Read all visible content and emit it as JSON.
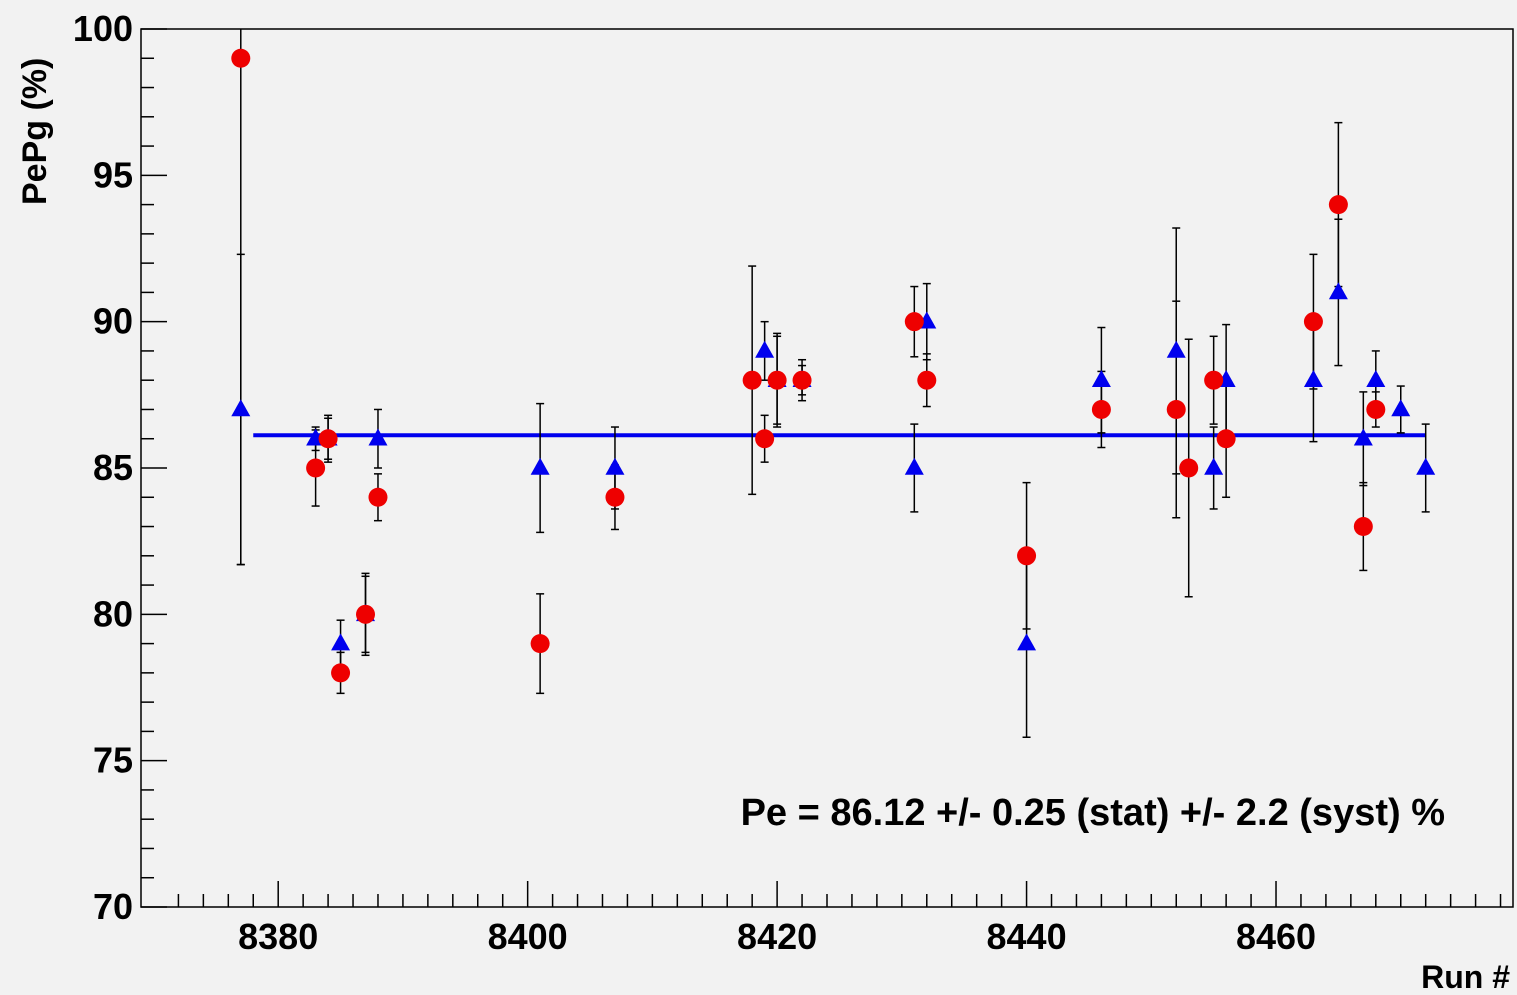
{
  "chart_data": {
    "type": "scatter",
    "title": "",
    "xlabel": "Run #",
    "ylabel": "PePg (%)",
    "xlim": [
      8369,
      8479
    ],
    "ylim": [
      70,
      100
    ],
    "x_ticks": [
      8380,
      8400,
      8420,
      8440,
      8460
    ],
    "y_ticks": [
      70,
      75,
      80,
      85,
      90,
      95,
      100
    ],
    "grid": false,
    "legend": "none",
    "annotation": "Pe = 86.12 +/- 0.25 (stat) +/- 2.2 (syst) %",
    "fit_line": {
      "value": 86.12,
      "x_range": [
        8378,
        8472
      ],
      "color": "#0000ee"
    },
    "series": [
      {
        "marker": "circle",
        "color": "#ee0000",
        "points": [
          {
            "x": 8377,
            "y": 99,
            "err": 17.3
          },
          {
            "x": 8383,
            "y": 85,
            "err": 1.3
          },
          {
            "x": 8384,
            "y": 86,
            "err": 0.8
          },
          {
            "x": 8385,
            "y": 78,
            "err": 0.7
          },
          {
            "x": 8387,
            "y": 80,
            "err": 1.4
          },
          {
            "x": 8388,
            "y": 84,
            "err": 0.8
          },
          {
            "x": 8401,
            "y": 79,
            "err": 1.7
          },
          {
            "x": 8407,
            "y": 84,
            "err": 1.1
          },
          {
            "x": 8418,
            "y": 88,
            "err": 3.9
          },
          {
            "x": 8419,
            "y": 86,
            "err": 0.8
          },
          {
            "x": 8420,
            "y": 88,
            "err": 1.5
          },
          {
            "x": 8422,
            "y": 88,
            "err": 0.7
          },
          {
            "x": 8431,
            "y": 90,
            "err": 1.2
          },
          {
            "x": 8432,
            "y": 88,
            "err": 0.9
          },
          {
            "x": 8440,
            "y": 82,
            "err": 2.5
          },
          {
            "x": 8446,
            "y": 87,
            "err": 1.3
          },
          {
            "x": 8452,
            "y": 87,
            "err": 3.7
          },
          {
            "x": 8453,
            "y": 85,
            "err": 4.4
          },
          {
            "x": 8455,
            "y": 88,
            "err": 1.5
          },
          {
            "x": 8456,
            "y": 86,
            "err": 2.0
          },
          {
            "x": 8463,
            "y": 90,
            "err": 2.3
          },
          {
            "x": 8465,
            "y": 94,
            "err": 2.8
          },
          {
            "x": 8467,
            "y": 83,
            "err": 1.5
          },
          {
            "x": 8468,
            "y": 87,
            "err": 0.6
          }
        ]
      },
      {
        "marker": "triangle",
        "color": "#0000ee",
        "points": [
          {
            "x": 8377,
            "y": 87,
            "err": 5.3
          },
          {
            "x": 8383,
            "y": 86,
            "err": 0.4
          },
          {
            "x": 8384,
            "y": 86,
            "err": 0.7
          },
          {
            "x": 8385,
            "y": 79,
            "err": 0.8
          },
          {
            "x": 8387,
            "y": 80,
            "err": 1.3
          },
          {
            "x": 8388,
            "y": 86,
            "err": 1.0
          },
          {
            "x": 8401,
            "y": 85,
            "err": 2.2
          },
          {
            "x": 8407,
            "y": 85,
            "err": 1.4
          },
          {
            "x": 8419,
            "y": 89,
            "err": 1.0
          },
          {
            "x": 8420,
            "y": 88,
            "err": 1.6
          },
          {
            "x": 8422,
            "y": 88,
            "err": 0.5
          },
          {
            "x": 8431,
            "y": 85,
            "err": 1.5
          },
          {
            "x": 8432,
            "y": 90,
            "err": 1.3
          },
          {
            "x": 8440,
            "y": 79,
            "err": 3.2
          },
          {
            "x": 8446,
            "y": 88,
            "err": 1.8
          },
          {
            "x": 8452,
            "y": 89,
            "err": 4.2
          },
          {
            "x": 8455,
            "y": 85,
            "err": 1.4
          },
          {
            "x": 8456,
            "y": 88,
            "err": 1.9
          },
          {
            "x": 8463,
            "y": 88,
            "err": 2.1
          },
          {
            "x": 8465,
            "y": 91,
            "err": 2.5
          },
          {
            "x": 8467,
            "y": 86,
            "err": 1.6
          },
          {
            "x": 8468,
            "y": 88,
            "err": 1.0
          },
          {
            "x": 8470,
            "y": 87,
            "err": 0.8
          },
          {
            "x": 8472,
            "y": 85,
            "err": 1.5
          }
        ]
      }
    ]
  }
}
